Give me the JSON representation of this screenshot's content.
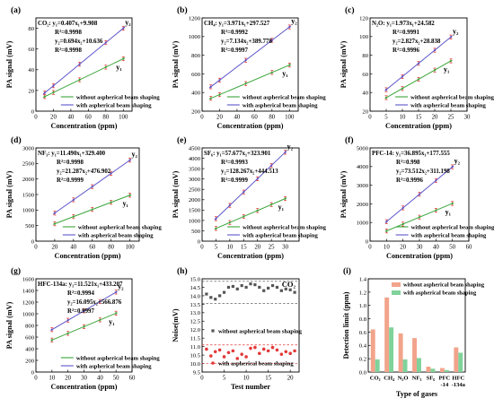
{
  "colors": {
    "green": "#3aa53a",
    "blue": "#5b55c9",
    "red": "#d94a4a",
    "bar_salmon": "#f2a48b",
    "bar_green": "#7fd39a",
    "noise_gray": "#555555",
    "noise_red": "#e33a3a",
    "axis": "#000000"
  },
  "legend": {
    "without": "without aspherical beam shaping",
    "with": "with aspherical beam shaping"
  },
  "chart_data": [
    {
      "id": "a",
      "type": "line",
      "panel_label": "(a)",
      "xlabel": "Concentration (ppm)",
      "ylabel": "PA signal (mV)",
      "xlim": [
        0,
        110
      ],
      "ylim": [
        0,
        90
      ],
      "xticks": [
        0,
        20,
        40,
        60,
        80,
        100
      ],
      "yticks": [
        0,
        20,
        40,
        60,
        80
      ],
      "annotations": [
        "CO₂: y₁=0.407x₁+9.908",
        "R²=0.9998",
        "y₂=0.694x₂+10.636",
        "R²=0.9998"
      ],
      "y1_label": "y₁",
      "y2_label": "y₂",
      "series": [
        {
          "name": "without aspherical beam shaping",
          "color": "green",
          "x": [
            10,
            20,
            50,
            80,
            100
          ],
          "y": [
            13.98,
            18.05,
            30.26,
            42.47,
            50.61
          ]
        },
        {
          "name": "with aspherical beam shaping",
          "color": "blue",
          "x": [
            10,
            20,
            50,
            80,
            100
          ],
          "y": [
            17.58,
            24.52,
            45.34,
            66.16,
            80.04
          ]
        }
      ]
    },
    {
      "id": "b",
      "type": "line",
      "panel_label": "(b)",
      "xlabel": "Concentration (ppm)",
      "ylabel": "PA signal (mV)",
      "xlim": [
        0,
        110
      ],
      "ylim": [
        200,
        1200
      ],
      "xticks": [
        0,
        20,
        40,
        60,
        80,
        100
      ],
      "yticks": [
        200,
        400,
        600,
        800,
        1000,
        1200
      ],
      "annotations": [
        "CH₄: y₁=3.971x₁+297.527",
        "R²=0.9992",
        "y₂=7.134x₂+389.778",
        "R²=0.9997"
      ],
      "y1_label": "y₁",
      "y2_label": "y₂",
      "series": [
        {
          "name": "without aspherical beam shaping",
          "color": "green",
          "x": [
            10,
            20,
            50,
            80,
            100
          ],
          "y": [
            337.2,
            376.9,
            496.1,
            615.2,
            694.6
          ]
        },
        {
          "name": "with aspherical beam shaping",
          "color": "blue",
          "x": [
            10,
            20,
            50,
            80,
            100
          ],
          "y": [
            461.1,
            532.5,
            746.5,
            960.5,
            1103.2
          ]
        }
      ]
    },
    {
      "id": "c",
      "type": "line",
      "panel_label": "(c)",
      "xlabel": "Concentration (ppm)",
      "ylabel": "PA signal (mV)",
      "xlim": [
        0,
        30
      ],
      "ylim": [
        20,
        120
      ],
      "xticks": [
        0,
        5,
        10,
        15,
        20,
        25,
        30
      ],
      "yticks": [
        20,
        40,
        60,
        80,
        100,
        120
      ],
      "annotations": [
        "N₂O: y₁=1.973x₁+24.582",
        "R²=0.9991",
        "y₂=2.827x₂+28.838",
        "R²=0.9996"
      ],
      "y1_label": "y₁",
      "y2_label": "y₂",
      "series": [
        {
          "name": "without aspherical beam shaping",
          "color": "green",
          "x": [
            5,
            10,
            15,
            20,
            25
          ],
          "y": [
            34.45,
            44.31,
            54.18,
            64.04,
            73.91
          ]
        },
        {
          "name": "with aspherical beam shaping",
          "color": "blue",
          "x": [
            5,
            10,
            15,
            20,
            25
          ],
          "y": [
            42.97,
            57.11,
            71.24,
            85.38,
            99.51
          ]
        }
      ]
    },
    {
      "id": "d",
      "type": "line",
      "panel_label": "(d)",
      "xlabel": "Concentration (ppm)",
      "ylabel": "PA signal (mV)",
      "xlim": [
        0,
        110
      ],
      "ylim": [
        0,
        3000
      ],
      "xticks": [
        0,
        20,
        40,
        60,
        80,
        100
      ],
      "yticks": [
        0,
        500,
        1000,
        1500,
        2000,
        2500,
        3000
      ],
      "annotations": [
        "NF₃: y₁=11.490x₁+329.400",
        "R²=0.9998",
        "y₂=21.287x₂+476.902",
        "R²=0.9999"
      ],
      "y1_label": "y₁",
      "y2_label": "y₂",
      "series": [
        {
          "name": "without aspherical beam shaping",
          "color": "green",
          "x": [
            20,
            40,
            60,
            80,
            100
          ],
          "y": [
            559.2,
            789.0,
            1018.8,
            1248.6,
            1478.4
          ]
        },
        {
          "name": "with aspherical beam shaping",
          "color": "blue",
          "x": [
            20,
            40,
            60,
            80,
            100
          ],
          "y": [
            902.6,
            1328.4,
            1754.1,
            2179.9,
            2605.6
          ]
        }
      ]
    },
    {
      "id": "e",
      "type": "line",
      "panel_label": "(e)",
      "xlabel": "Concentration (ppm)",
      "ylabel": "PA signal (mV)",
      "xlim": [
        0,
        35
      ],
      "ylim": [
        0,
        4500
      ],
      "xticks": [
        0,
        5,
        10,
        15,
        20,
        25,
        30
      ],
      "yticks": [
        0,
        500,
        1000,
        1500,
        2000,
        2500,
        3000,
        3500,
        4000,
        4500
      ],
      "annotations": [
        "SF₆: y₁=57.677x₁+323.901",
        "R²=0.9993",
        "y₂=128.267x₂+444.513",
        "R²=0.9999"
      ],
      "y1_label": "y₁",
      "y2_label": "y₂",
      "series": [
        {
          "name": "without aspherical beam shaping",
          "color": "green",
          "x": [
            5,
            10,
            15,
            20,
            25,
            30
          ],
          "y": [
            612.3,
            900.7,
            1189.1,
            1477.4,
            1765.8,
            2054.2
          ]
        },
        {
          "name": "with aspherical beam shaping",
          "color": "blue",
          "x": [
            5,
            10,
            15,
            20,
            25,
            30
          ],
          "y": [
            1085.8,
            1727.2,
            2368.5,
            3009.9,
            3651.2,
            4292.5
          ]
        }
      ]
    },
    {
      "id": "f",
      "type": "line",
      "panel_label": "(f)",
      "xlabel": "Concentration (ppm)",
      "ylabel": "PA signal (mV)",
      "xlim": [
        0,
        60
      ],
      "ylim": [
        0,
        5000
      ],
      "xticks": [
        0,
        10,
        20,
        30,
        40,
        50,
        60
      ],
      "yticks": [
        0,
        1000,
        2000,
        3000,
        4000,
        5000
      ],
      "annotations": [
        "PFC-14: y₁=36.895x₁+177.555",
        "R²=0.998",
        "y₂=73.512x₂+311.198",
        "R²=0.9996"
      ],
      "y1_label": "y₁",
      "y2_label": "y₂",
      "series": [
        {
          "name": "without aspherical beam shaping",
          "color": "green",
          "x": [
            10,
            20,
            30,
            40,
            50
          ],
          "y": [
            546.5,
            915.5,
            1284.4,
            1653.4,
            2022.3
          ]
        },
        {
          "name": "with aspherical beam shaping",
          "color": "blue",
          "x": [
            10,
            20,
            30,
            40,
            50
          ],
          "y": [
            1046.3,
            1781.4,
            2516.6,
            3251.7,
            3986.8
          ]
        }
      ]
    },
    {
      "id": "g",
      "type": "line",
      "panel_label": "(g)",
      "xlabel": "Concentration (ppm)",
      "ylabel": "PA signal (mV)",
      "xlim": [
        0,
        60
      ],
      "ylim": [
        0,
        1600
      ],
      "xticks": [
        0,
        10,
        20,
        30,
        40,
        50,
        60
      ],
      "yticks": [
        0,
        200,
        400,
        600,
        800,
        1000,
        1200,
        1400,
        1600
      ],
      "annotations": [
        "HFC-134a: y₁=11.521x₁+433.207",
        "R²=0.9994",
        "y₂=16.095x₂+566.876",
        "R²=0.9997"
      ],
      "y1_label": "y₁",
      "y2_label": "y₂",
      "series": [
        {
          "name": "without aspherical beam shaping",
          "color": "green",
          "x": [
            10,
            20,
            30,
            40,
            50
          ],
          "y": [
            548.4,
            663.6,
            778.8,
            894.0,
            1009.3
          ]
        },
        {
          "name": "with aspherical beam shaping",
          "color": "blue",
          "x": [
            10,
            20,
            30,
            40,
            50
          ],
          "y": [
            727.8,
            888.8,
            1049.7,
            1210.7,
            1371.6
          ]
        }
      ]
    },
    {
      "id": "h",
      "type": "scatter",
      "panel_label": "(h)",
      "title": "CO₂",
      "xlabel": "Test number",
      "ylabel": "Noise(mV)",
      "xlim": [
        0,
        22
      ],
      "ylim": [
        9.5,
        15
      ],
      "xticks": [
        0,
        5,
        10,
        15,
        20
      ],
      "yticks": [
        9.5,
        10.0,
        10.5,
        11.0,
        11.5,
        12.0,
        12.5,
        13.0,
        13.5,
        14.0,
        14.5,
        15.0
      ],
      "ref_lines": {
        "gray": [
          13.55,
          14.85
        ],
        "red": [
          10.0,
          11.1
        ]
      },
      "series": [
        {
          "name": "without aspherical beam shaping",
          "color": "noise_gray",
          "marker": "square",
          "x": [
            1,
            2,
            3,
            4,
            5,
            6,
            7,
            8,
            9,
            10,
            11,
            12,
            13,
            14,
            15,
            16,
            17,
            18,
            19,
            20,
            21
          ],
          "y": [
            14.1,
            13.9,
            13.8,
            14.0,
            14.2,
            14.5,
            14.55,
            14.4,
            14.6,
            14.5,
            14.7,
            14.65,
            14.5,
            14.3,
            14.45,
            14.6,
            14.5,
            14.3,
            14.4,
            14.35,
            14.2
          ]
        },
        {
          "name": "with aspherical beam shaping",
          "color": "noise_red",
          "marker": "circle",
          "x": [
            1,
            2,
            3,
            4,
            5,
            6,
            7,
            8,
            9,
            10,
            11,
            12,
            13,
            14,
            15,
            16,
            17,
            18,
            19,
            20,
            21
          ],
          "y": [
            10.85,
            10.45,
            10.7,
            10.8,
            10.4,
            10.65,
            10.75,
            10.3,
            10.55,
            10.4,
            10.9,
            10.95,
            10.6,
            10.85,
            10.75,
            10.95,
            10.8,
            10.55,
            10.7,
            10.6,
            10.75
          ]
        }
      ]
    },
    {
      "id": "i",
      "type": "bar",
      "panel_label": "(i)",
      "xlabel": "Type of gases",
      "ylabel": "Detection limit (ppm)",
      "ylim": [
        0,
        1.4
      ],
      "yticks": [
        0.0,
        0.2,
        0.4,
        0.6,
        0.8,
        1.0,
        1.2,
        1.4
      ],
      "categories": [
        "CO₂",
        "CH₄",
        "N₂O",
        "NF₃",
        "SF₆",
        "PFC-14",
        "HFC-134a"
      ],
      "series": [
        {
          "name": "without aspherical beam shaping",
          "color": "bar_salmon",
          "values": [
            0.64,
            1.12,
            0.58,
            0.51,
            0.08,
            0.06,
            0.37
          ]
        },
        {
          "name": "with aspherical beam shaping",
          "color": "bar_green",
          "values": [
            0.19,
            0.67,
            0.19,
            0.21,
            0.05,
            0.03,
            0.29
          ]
        }
      ]
    }
  ]
}
